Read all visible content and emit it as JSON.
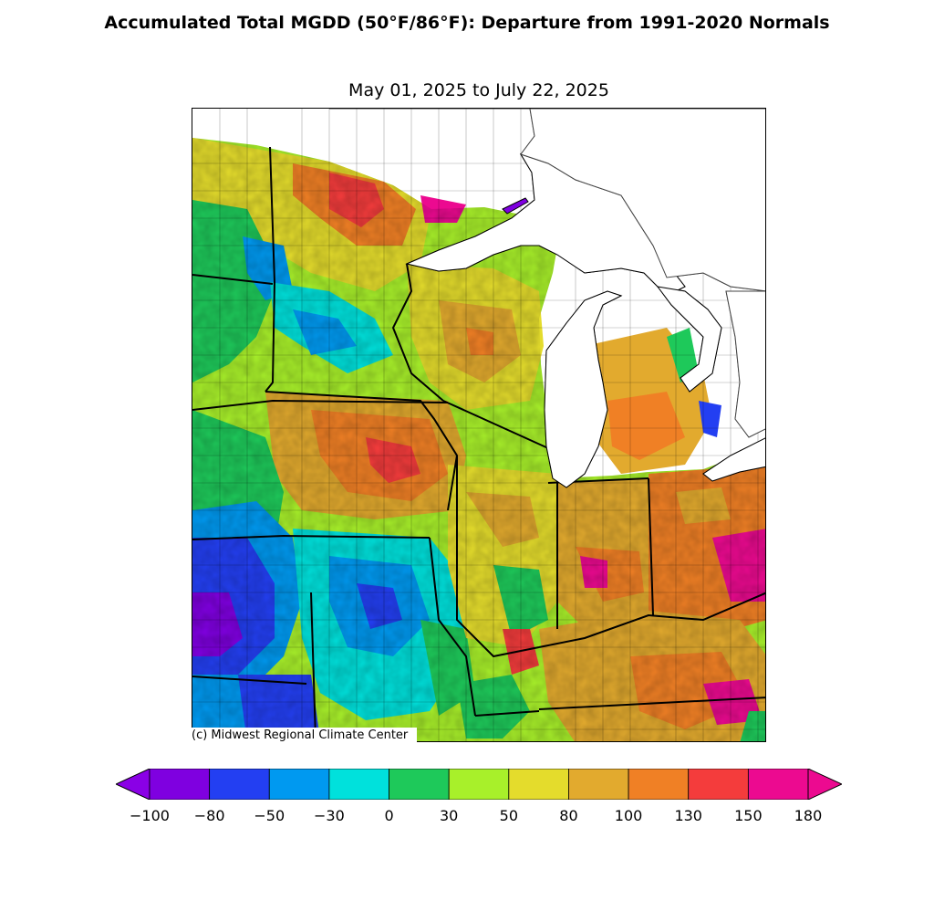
{
  "title": "Accumulated Total MGDD  (50°F/86°F): Departure from 1991-2020 Normals",
  "subtitle": "May 01, 2025 to July 22, 2025",
  "credit": "(c) Midwest Regional Climate Center",
  "colorbar": {
    "ticks": [
      "−100",
      "−80",
      "−50",
      "−30",
      "0",
      "30",
      "50",
      "80",
      "100",
      "130",
      "150",
      "180"
    ],
    "bins": [
      {
        "from": -100,
        "to": -80,
        "color": "#7f00e0"
      },
      {
        "from": -80,
        "to": -50,
        "color": "#233ff2"
      },
      {
        "from": -50,
        "to": -30,
        "color": "#0099f0"
      },
      {
        "from": -30,
        "to": 0,
        "color": "#00e1dc"
      },
      {
        "from": 0,
        "to": 30,
        "color": "#1ec95a"
      },
      {
        "from": 30,
        "to": 50,
        "color": "#a8f02a"
      },
      {
        "from": 50,
        "to": 80,
        "color": "#e4dc2c"
      },
      {
        "from": 80,
        "to": 100,
        "color": "#e2aa2e"
      },
      {
        "from": 100,
        "to": 130,
        "color": "#f08025"
      },
      {
        "from": 130,
        "to": 150,
        "color": "#f43c3c"
      },
      {
        "from": 150,
        "to": 180,
        "color": "#ec0a90"
      }
    ],
    "under_color": "#8a00e6",
    "over_color": "#ec0a90"
  },
  "map": {
    "water_color": "#ffffff",
    "states": [
      "Minnesota",
      "Iowa",
      "Missouri",
      "Wisconsin",
      "Illinois",
      "Michigan",
      "Indiana",
      "Ohio",
      "Kentucky"
    ]
  }
}
